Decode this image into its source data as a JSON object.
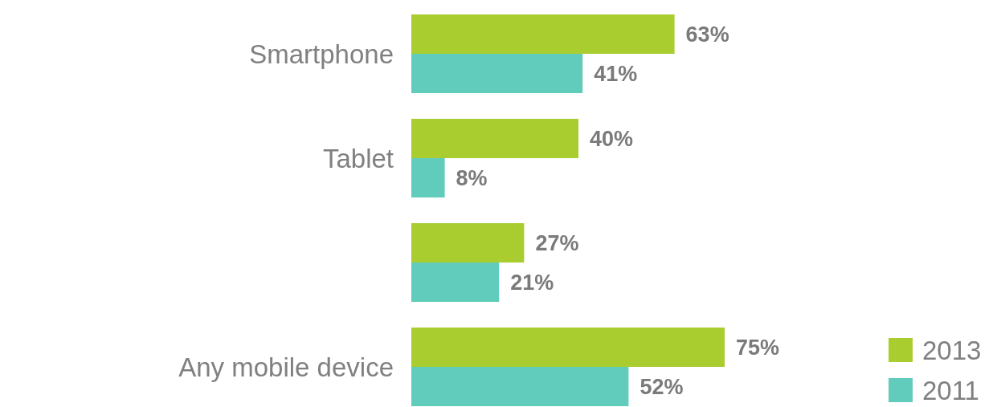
{
  "chart_data": {
    "type": "bar",
    "orientation": "horizontal",
    "categories": [
      "Smartphone",
      "Tablet",
      null,
      "Any mobile device"
    ],
    "series": [
      {
        "name": "2013",
        "color": "#a9cd2f",
        "values": [
          63,
          40,
          27,
          75
        ],
        "value_labels": [
          "63%",
          "40%",
          "27%",
          "75%"
        ]
      },
      {
        "name": "2011",
        "color": "#62ccbc",
        "values": [
          41,
          8,
          21,
          52
        ],
        "value_labels": [
          "41%",
          "8%",
          "21%",
          "52%"
        ]
      }
    ],
    "legend": "bottom right"
  }
}
